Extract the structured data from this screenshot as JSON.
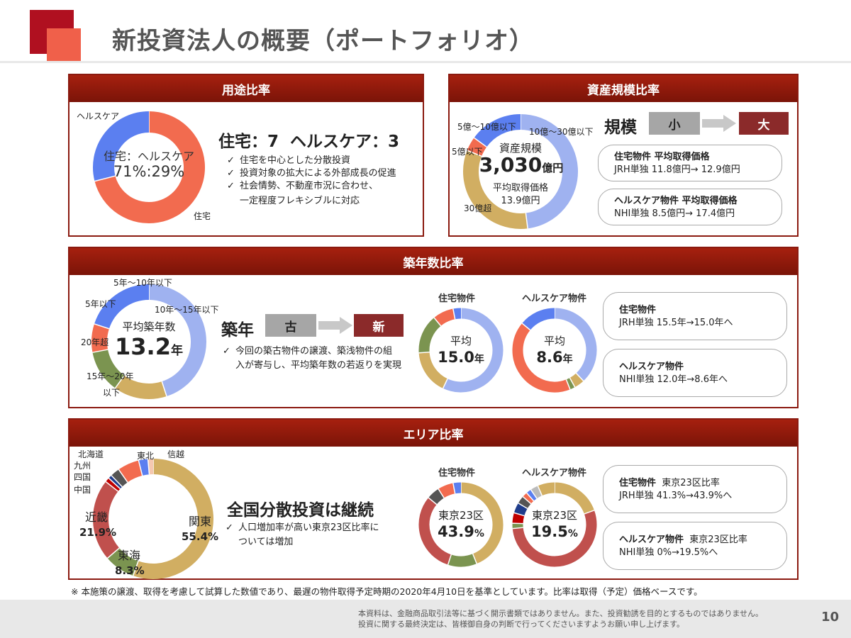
{
  "page": {
    "title": "新投資法人の概要（ポートフォリオ）",
    "number": "10",
    "footnote": "※ 本施策の譲渡、取得を考慮して試算した数値であり、最遅の物件取得予定時期の2020年4月10日を基準としています。比率は取得（予定）価格ベースです。",
    "disclaimer_1": "本資料は、金融商品取引法等に基づく開示書類ではありません。また、投資勧誘を目的とするものではありません。",
    "disclaimer_2": "投資に関する最終決定は、皆様御自身の判断で行ってくださいますようお願い申し上げます。"
  },
  "usage": {
    "header": "用途比率",
    "center_1": "住宅：ヘルスケア",
    "center_2": "71%:29%",
    "label_health": "ヘルスケア",
    "label_res": "住宅",
    "headline": "住宅：7  ヘルスケア：3",
    "bullet_1": "住宅を中心とした分散投資",
    "bullet_2": "投資対象の拡大による外部成長の促進",
    "bullet_3a": "社会情勢、不動産市況に合わせ、",
    "bullet_3b": "一定程度フレキシブルに対応"
  },
  "size": {
    "header": "資産規模比率",
    "center_1": "資産規模",
    "center_2": "3,030",
    "center_2_unit": "億円",
    "center_3": "平均取得価格",
    "center_4": "13.9億円",
    "label_a": "5億～10億以下",
    "label_b": "10億～30億以下",
    "label_c": "5億以下",
    "label_d": "30億超",
    "scale_label": "規模",
    "small": "小",
    "large": "大",
    "pill1_title": "住宅物件 平均取得価格",
    "pill1_text": "JRH単独 11.8億円→ 12.9億円",
    "pill2_title": "ヘルスケア物件 平均取得価格",
    "pill2_text": "NHI単独 8.5億円→ 17.4億円"
  },
  "age": {
    "header": "築年数比率",
    "center_1": "平均築年数",
    "center_2": "13.2",
    "center_2_unit": "年",
    "label_a": "5年～10年以下",
    "label_b": "5年以下",
    "label_c": "10年～15年以下",
    "label_d": "20年超",
    "label_e": "15年～20年",
    "label_f": "以下",
    "scale_label": "築年",
    "old": "古",
    "new": "新",
    "bullet_1a": "今回の築古物件の譲渡、築浅物件の組",
    "bullet_1b": "入が寄与し、平均築年数の若返りを実現",
    "res_head": "住宅物件",
    "res_c1": "平均",
    "res_c2": "15.0",
    "res_unit": "年",
    "hc_head": "ヘルスケア物件",
    "hc_c1": "平均",
    "hc_c2": "8.6",
    "hc_unit": "年",
    "pill1_title": "住宅物件",
    "pill1_text": "JRH単独 15.5年→15.0年へ",
    "pill2_title": "ヘルスケア物件",
    "pill2_text": "NHI単独 12.0年→8.6年へ"
  },
  "area": {
    "header": "エリア比率",
    "label_hokkaido": "北海道",
    "label_kyushu": "九州",
    "label_shikoku": "四国",
    "label_chugoku": "中国",
    "label_tohoku": "東北",
    "label_shinetsu": "信越",
    "label_kinki": "近畿",
    "label_kinki_pct": "21.9%",
    "label_tokai": "東海",
    "label_tokai_pct": "8.3%",
    "label_kanto": "関東",
    "label_kanto_pct": "55.4%",
    "headline": "全国分散投資は継続",
    "bullet_1a": "人口増加率が高い東京23区比率に",
    "bullet_1b": "ついては増加",
    "res_head": "住宅物件",
    "res_c1": "東京23区",
    "res_c2": "43.9",
    "res_unit": "%",
    "hc_head": "ヘルスケア物件",
    "hc_c1": "東京23区",
    "hc_c2": "19.5",
    "hc_unit": "%",
    "pill1_title": "住宅物件",
    "pill1_sub": "東京23区比率",
    "pill1_text": "JRH単独 41.3%→43.9%へ",
    "pill2_title": "ヘルスケア物件",
    "pill2_sub": "東京23区比率",
    "pill2_text": "NHI単独 0%→19.5%へ"
  },
  "chart_data": [
    {
      "type": "pie",
      "name": "usage",
      "categories": [
        "住宅",
        "ヘルスケア"
      ],
      "values": [
        71,
        29
      ],
      "colors": [
        "#f26b4f",
        "#5b7ff0"
      ]
    },
    {
      "type": "pie",
      "name": "size",
      "categories": [
        "10億～30億以下",
        "30億超",
        "5億以下",
        "5億～10億以下"
      ],
      "values": [
        48,
        33,
        4,
        15
      ],
      "colors": [
        "#9fb2f0",
        "#d1ae62",
        "#f26b4f",
        "#5b7ff0"
      ]
    },
    {
      "type": "pie",
      "name": "age",
      "categories": [
        "10年～15年以下",
        "15年～20年以下",
        "20年超",
        "5年以下",
        "5年～10年以下"
      ],
      "values": [
        45,
        15,
        12,
        8,
        20
      ],
      "colors": [
        "#9fb2f0",
        "#d1ae62",
        "#7b9450",
        "#f26b4f",
        "#5b7ff0"
      ]
    },
    {
      "type": "pie",
      "name": "age_res",
      "values": [
        57,
        17,
        15,
        8,
        3
      ],
      "colors": [
        "#9fb2f0",
        "#d1ae62",
        "#7b9450",
        "#f26b4f",
        "#5b7ff0"
      ]
    },
    {
      "type": "pie",
      "name": "age_hc",
      "values": [
        38,
        4,
        2,
        42,
        14
      ],
      "colors": [
        "#9fb2f0",
        "#d1ae62",
        "#7b9450",
        "#f26b4f",
        "#5b7ff0"
      ]
    },
    {
      "type": "pie",
      "name": "area",
      "categories": [
        "関東",
        "東海",
        "近畿",
        "中国",
        "四国",
        "九州",
        "北海道",
        "東北",
        "信越"
      ],
      "values": [
        55.4,
        8.3,
        21.9,
        1.2,
        1.0,
        2.5,
        5.8,
        2.5,
        1.4
      ],
      "colors": [
        "#d1ae62",
        "#7b9450",
        "#c0504d",
        "#c00000",
        "#1f3d8c",
        "#555555",
        "#f26b4f",
        "#5b7ff0",
        "#f5c8b0"
      ]
    },
    {
      "type": "pie",
      "name": "area_res",
      "values": [
        43.9,
        11.1,
        31,
        5,
        6,
        3
      ],
      "colors": [
        "#d1ae62",
        "#7b9450",
        "#c0504d",
        "#555555",
        "#f26b4f",
        "#5b7ff0"
      ]
    },
    {
      "type": "pie",
      "name": "area_hc",
      "values": [
        19.5,
        54,
        2,
        4,
        4,
        3,
        2,
        2,
        3,
        6.5
      ],
      "colors": [
        "#d1ae62",
        "#c0504d",
        "#7b9450",
        "#c00000",
        "#1f3d8c",
        "#555555",
        "#f26b4f",
        "#5b7ff0",
        "#bbbbbb",
        "#d1ae62"
      ]
    }
  ]
}
